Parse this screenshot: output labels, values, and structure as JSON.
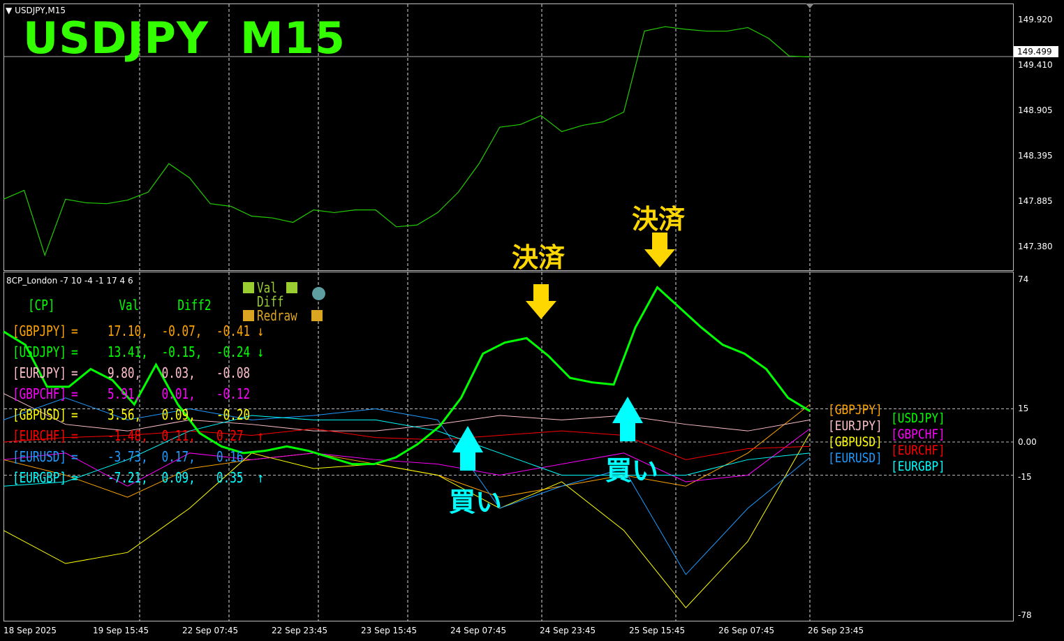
{
  "window": {
    "symbol_title": "USDJPY,M15",
    "big_title": "USDJPY  M15"
  },
  "price_axis": {
    "ticks": [
      "149.920",
      "149.410",
      "148.905",
      "148.395",
      "147.885",
      "147.380"
    ],
    "current": "149.499",
    "current_value": 149.499,
    "range": [
      147.2,
      149.95
    ]
  },
  "price_series": [
    147.9,
    148.0,
    147.27,
    147.9,
    147.86,
    147.85,
    147.89,
    147.98,
    148.3,
    148.14,
    147.85,
    147.82,
    147.71,
    147.69,
    147.64,
    147.78,
    147.75,
    147.78,
    147.78,
    147.59,
    147.61,
    147.75,
    147.98,
    148.3,
    148.71,
    148.74,
    148.84,
    148.66,
    148.73,
    148.77,
    148.88,
    149.79,
    149.84,
    149.81,
    149.79,
    149.79,
    149.83,
    149.71,
    149.51,
    149.5
  ],
  "time_axis": [
    "18 Sep 2025",
    "19 Sep 15:45",
    "22 Sep 07:45",
    "22 Sep 23:45",
    "23 Sep 15:45",
    "24 Sep 07:45",
    "24 Sep 23:45",
    "25 Sep 15:45",
    "26 Sep 07:45",
    "26 Sep 23:45"
  ],
  "indicator": {
    "name": "8CP_London -7 10 -4 -1 17 4 6",
    "axis": {
      "ticks": [
        "74",
        "15",
        "0.00",
        "-15",
        "-78"
      ],
      "range": [
        -78,
        74
      ]
    },
    "header": {
      "cp": "[CP]",
      "val": "Val",
      "diff2": "Diff2"
    },
    "buttons": {
      "val": "Val",
      "diff": "Diff",
      "redraw": "Redraw"
    },
    "rows": [
      {
        "pair": "[GBPJPY]",
        "eq": "=",
        "val": "17.10,",
        "diff2": "-0.07,",
        "diff": "-0.41",
        "arrow": "↓",
        "color": "#ffa500"
      },
      {
        "pair": "[USDJPY]",
        "eq": "=",
        "val": "13.41,",
        "diff2": "-0.15,",
        "diff": "-0.24",
        "arrow": "↓",
        "color": "#00ff00"
      },
      {
        "pair": "[EURJPY]",
        "eq": "=",
        "val": "9.80,",
        "diff2": "0.03,",
        "diff": "-0.08",
        "arrow": "",
        "color": "#ffc0cb"
      },
      {
        "pair": "[GBPCHF]",
        "eq": "=",
        "val": "5.91,",
        "diff2": "0.01,",
        "diff": "-0.12",
        "arrow": "",
        "color": "#ff00ff"
      },
      {
        "pair": "[GBPUSD]",
        "eq": "=",
        "val": "3.56,",
        "diff2": "0.09,",
        "diff": "-0.20",
        "arrow": "",
        "color": "#ffff00"
      },
      {
        "pair": "[EURCHF]",
        "eq": "=",
        "val": "-1.48,",
        "diff2": "0.11,",
        "diff": "0.27",
        "arrow": "↑",
        "color": "#ff0000"
      },
      {
        "pair": "[EURUSD]",
        "eq": "=",
        "val": "-3.73,",
        "diff2": "0.17,",
        "diff": "0.16",
        "arrow": "",
        "color": "#1e9bff"
      },
      {
        "pair": "[EURGBP]",
        "eq": "=",
        "val": "-7.21,",
        "diff2": "0.09,",
        "diff": "0.35",
        "arrow": "↑",
        "color": "#00ffff"
      }
    ],
    "series": [
      {
        "name": "GBPJPY",
        "color": "#ffa500",
        "values": [
          -8,
          -15,
          -25,
          -12,
          -8,
          -5,
          -10,
          -15,
          -25,
          -20,
          -15,
          -20,
          -5,
          17
        ]
      },
      {
        "name": "EURJPY",
        "color": "#ffc0cb",
        "values": [
          22,
          8,
          5,
          10,
          8,
          5,
          5,
          8,
          12,
          10,
          12,
          8,
          5,
          10
        ]
      },
      {
        "name": "GBPCHF",
        "color": "#ff00ff",
        "values": [
          -8,
          -5,
          -20,
          -5,
          -8,
          -5,
          -8,
          -10,
          -15,
          -10,
          -5,
          -18,
          -15,
          6
        ]
      },
      {
        "name": "GBPUSD",
        "color": "#ffff00",
        "values": [
          -40,
          -55,
          -50,
          -30,
          -5,
          -12,
          -10,
          -15,
          -30,
          -18,
          -40,
          -75,
          -45,
          4
        ]
      },
      {
        "name": "EURCHF",
        "color": "#ff0000",
        "values": [
          0,
          2,
          3,
          5,
          3,
          6,
          2,
          1,
          3,
          5,
          3,
          -8,
          -3,
          -2
        ]
      },
      {
        "name": "EURUSD",
        "color": "#1e9bff",
        "values": [
          10,
          20,
          10,
          15,
          10,
          12,
          15,
          10,
          -30,
          -20,
          -12,
          -60,
          -30,
          -7
        ]
      },
      {
        "name": "EURGBP",
        "color": "#00ffff",
        "values": [
          -20,
          -18,
          -8,
          5,
          12,
          10,
          10,
          5,
          -5,
          -15,
          -15,
          -15,
          -8,
          -5
        ]
      },
      {
        "name": "USDJPY",
        "color": "#00ff00",
        "values": [
          50,
          44,
          25,
          25,
          33,
          28,
          17,
          35,
          17,
          4,
          -2,
          -5,
          -4,
          -2,
          -4,
          -7,
          -10,
          -10,
          -7,
          -1,
          7,
          20,
          40,
          45,
          47,
          39,
          29,
          27,
          26,
          52,
          70,
          61,
          52,
          44,
          40,
          33,
          20,
          14
        ]
      }
    ],
    "legend_left": [
      {
        "label": "[GBPJPY]",
        "color": "#ffa500"
      },
      {
        "label": "[EURJPY]",
        "color": "#ffc0cb"
      },
      {
        "label": "[GBPUSD]",
        "color": "#ffff00"
      },
      {
        "label": "[EURUSD]",
        "color": "#1e9bff"
      }
    ],
    "legend_right": [
      {
        "label": "[USDJPY]",
        "color": "#00ff00"
      },
      {
        "label": "[GBPCHF]",
        "color": "#ff00ff"
      },
      {
        "label": "[EURCHF]",
        "color": "#ff0000"
      },
      {
        "label": "[EURGBP]",
        "color": "#00ffff"
      }
    ]
  },
  "annotations": {
    "settle": "決済",
    "buy": "買い",
    "settle_color": "#ffd700",
    "buy_color": "#00ffff"
  }
}
